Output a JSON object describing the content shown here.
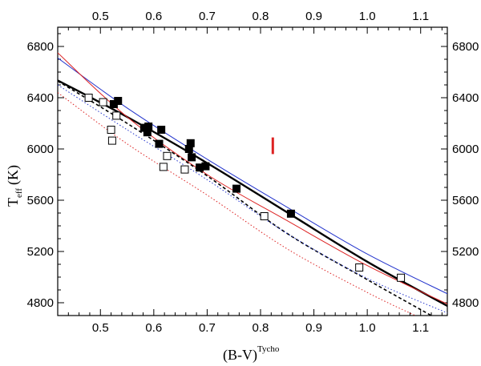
{
  "chart_data": {
    "type": "scatter",
    "xlabel": "(B-V)",
    "xlabel_sup": "Tycho",
    "ylabel": "T",
    "ylabel_sub": "eff",
    "ylabel_unit": "(K)",
    "xlim": [
      0.42,
      1.15
    ],
    "ylim": [
      4700,
      6950
    ],
    "x_ticks": [
      0.5,
      0.6,
      0.7,
      0.8,
      0.9,
      1.0,
      1.1
    ],
    "x_tick_labels": [
      "0.5",
      "0.6",
      "0.7",
      "0.8",
      "0.9",
      "1.0",
      "1.1"
    ],
    "y_ticks": [
      4800,
      5200,
      5600,
      6000,
      6400,
      6800
    ],
    "y_tick_labels": [
      "4800",
      "5200",
      "5600",
      "6000",
      "6400",
      "6800"
    ],
    "grid": false,
    "series": [
      {
        "marker": "filled-square",
        "color": "#000000",
        "points": [
          [
            0.525,
            6350
          ],
          [
            0.533,
            6375
          ],
          [
            0.582,
            6165
          ],
          [
            0.59,
            6175
          ],
          [
            0.588,
            6130
          ],
          [
            0.614,
            6150
          ],
          [
            0.61,
            6040
          ],
          [
            0.666,
            6000
          ],
          [
            0.669,
            6045
          ],
          [
            0.671,
            5935
          ],
          [
            0.686,
            5855
          ],
          [
            0.697,
            5865
          ],
          [
            0.755,
            5690
          ],
          [
            0.857,
            5495
          ]
        ]
      },
      {
        "marker": "open-square",
        "color": "#000000",
        "points": [
          [
            0.478,
            6400
          ],
          [
            0.505,
            6365
          ],
          [
            0.53,
            6260
          ],
          [
            0.52,
            6150
          ],
          [
            0.522,
            6065
          ],
          [
            0.618,
            5860
          ],
          [
            0.625,
            5945
          ],
          [
            0.658,
            5840
          ],
          [
            0.807,
            5475
          ],
          [
            0.985,
            5075
          ],
          [
            1.063,
            4995
          ]
        ]
      },
      {
        "marker": "line",
        "color": "#000000",
        "style": "solid",
        "width": 2.4,
        "points": [
          [
            0.42,
            6535
          ],
          [
            0.55,
            6250
          ],
          [
            0.7,
            5890
          ],
          [
            0.85,
            5505
          ],
          [
            1.0,
            5120
          ],
          [
            1.15,
            4775
          ]
        ]
      },
      {
        "marker": "line",
        "color": "#2233cc",
        "style": "solid",
        "width": 1.0,
        "points": [
          [
            0.42,
            6710
          ],
          [
            0.55,
            6320
          ],
          [
            0.7,
            5920
          ],
          [
            0.85,
            5545
          ],
          [
            1.0,
            5180
          ],
          [
            1.15,
            4870
          ]
        ]
      },
      {
        "marker": "line",
        "color": "#dd2222",
        "style": "solid",
        "width": 1.0,
        "points": [
          [
            0.42,
            6750
          ],
          [
            0.55,
            6250
          ],
          [
            0.7,
            5800
          ],
          [
            0.85,
            5440
          ],
          [
            1.0,
            5090
          ],
          [
            1.15,
            4790
          ]
        ]
      },
      {
        "marker": "line",
        "color": "#000000",
        "style": "dashed",
        "width": 1.6,
        "points": [
          [
            0.42,
            6530
          ],
          [
            0.55,
            6200
          ],
          [
            0.7,
            5790
          ],
          [
            0.85,
            5340
          ],
          [
            1.0,
            4980
          ],
          [
            1.12,
            4700
          ]
        ]
      },
      {
        "marker": "line",
        "color": "#2233cc",
        "style": "dotted",
        "width": 1.0,
        "points": [
          [
            0.42,
            6500
          ],
          [
            0.55,
            6150
          ],
          [
            0.7,
            5760
          ],
          [
            0.85,
            5340
          ],
          [
            1.0,
            4990
          ],
          [
            1.15,
            4720
          ]
        ]
      },
      {
        "marker": "line",
        "color": "#dd2222",
        "style": "dotted",
        "width": 1.0,
        "points": [
          [
            0.42,
            6440
          ],
          [
            0.55,
            6040
          ],
          [
            0.7,
            5640
          ],
          [
            0.85,
            5220
          ],
          [
            1.0,
            4880
          ],
          [
            1.09,
            4700
          ]
        ]
      },
      {
        "marker": "error-bar",
        "color": "#dd2222",
        "points": [
          [
            0.823,
            5960
          ],
          [
            0.823,
            6090
          ]
        ]
      }
    ]
  }
}
